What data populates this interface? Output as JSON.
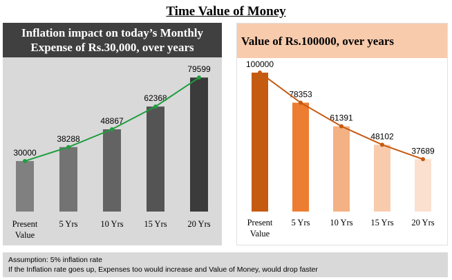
{
  "title": "Time Value of Money",
  "chart_data": [
    {
      "type": "bar",
      "title": "Inflation impact on today’s Monthly Expense of Rs.30,000, over years",
      "categories": [
        "Present Value",
        "5 Yrs",
        "10 Yrs",
        "15 Yrs",
        "20 Yrs"
      ],
      "values": [
        30000,
        38288,
        48867,
        62368,
        79599
      ],
      "ylim": [
        0,
        85000
      ],
      "trendline": "green",
      "bar_colors": [
        "#808080",
        "#737373",
        "#636363",
        "#545454",
        "#3b3b3b"
      ],
      "line_color": "#1e9e3e"
    },
    {
      "type": "bar",
      "title": "Value of Rs.100000, over years",
      "categories": [
        "Present Value",
        "5 Yrs",
        "10 Yrs",
        "15 Yrs",
        "20 Yrs"
      ],
      "values": [
        100000,
        78353,
        61391,
        48102,
        37689
      ],
      "ylim": [
        0,
        106000
      ],
      "trendline": "orange",
      "bar_colors": [
        "#c55a11",
        "#ed7d31",
        "#f4b183",
        "#f8cbad",
        "#fbe0cf"
      ],
      "line_color": "#c55a11"
    }
  ],
  "footer": {
    "line1": "Assumption: 5% inflation rate",
    "line2": "If the Inflation rate goes up, Expenses too would increase and Value of Money, would drop faster"
  }
}
